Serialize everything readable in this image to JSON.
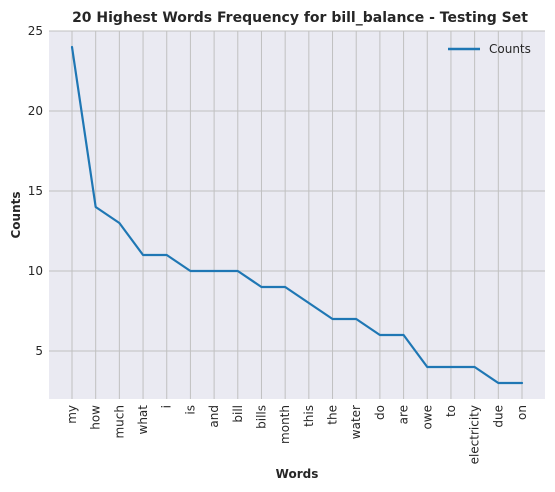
{
  "chart_data": {
    "type": "line",
    "title": "20 Highest Words Frequency for bill_balance - Testing Set",
    "xlabel": "Words",
    "ylabel": "Counts",
    "categories": [
      "my",
      "how",
      "much",
      "what",
      "i",
      "is",
      "and",
      "bill",
      "bills",
      "month",
      "this",
      "the",
      "water",
      "do",
      "are",
      "owe",
      "to",
      "electricity",
      "due",
      "on"
    ],
    "series": [
      {
        "name": "Counts",
        "values": [
          24,
          14,
          13,
          11,
          11,
          10,
          10,
          10,
          9,
          9,
          8,
          7,
          7,
          6,
          6,
          4,
          4,
          4,
          3,
          3
        ],
        "color": "#1f77b4"
      }
    ],
    "ylim": [
      2,
      25
    ],
    "yticks": [
      5,
      10,
      15,
      20,
      25
    ],
    "grid": true,
    "legend_position": "top-right",
    "background_color": "#eaeaf2",
    "grid_color": "#c0c0c0"
  }
}
